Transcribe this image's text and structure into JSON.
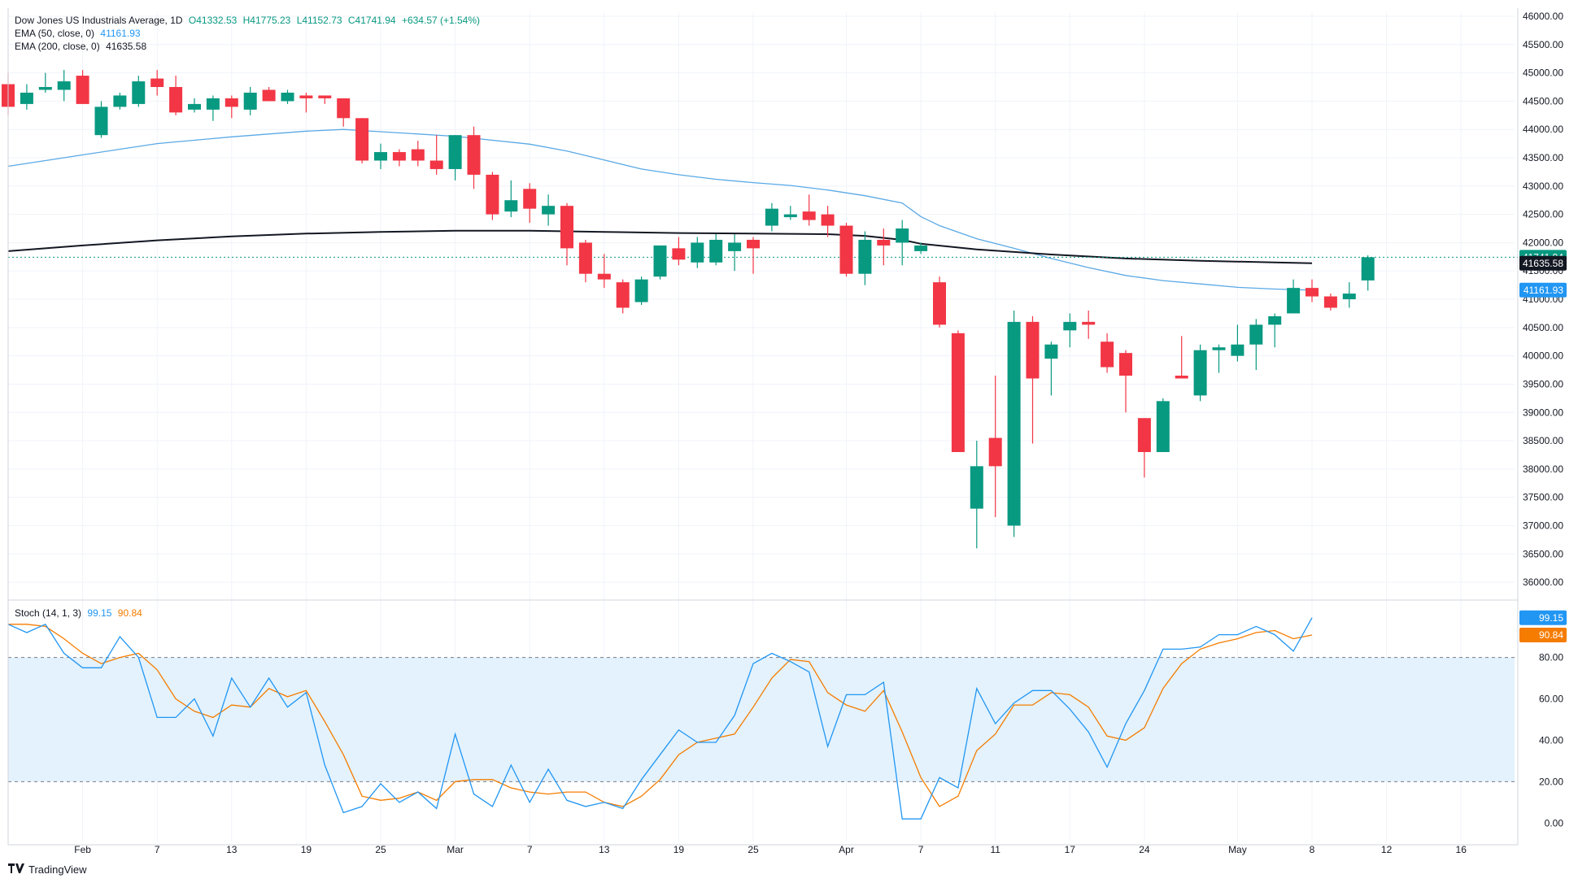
{
  "header": {
    "symbol": "Dow Jones US Industrials Average, 1D",
    "open": "O41332.53",
    "high": "H41775.23",
    "low": "L41152.73",
    "close": "C41741.94",
    "change": "+634.57 (+1.54%)",
    "ema50_label": "EMA (50, close, 0)",
    "ema50_value": "41161.93",
    "ema200_label": "EMA (200, close, 0)",
    "ema200_value": "41635.58"
  },
  "stoch_legend": {
    "label": "Stoch (14, 1, 3)",
    "k_value": "99.15",
    "d_value": "90.84"
  },
  "brand": {
    "name": "TradingView",
    "logo_icon": "tradingview-logo-icon"
  },
  "colors": {
    "up": "#089981",
    "down": "#f23645",
    "ema50": "#5aa9e6",
    "ema200": "#131722",
    "stoch_k": "#2196f3",
    "stoch_d": "#f57c00",
    "stoch_band": "#e3f2fd",
    "grid": "#f0f3fa"
  },
  "chart_data": [
    {
      "type": "candlestick",
      "title": "Dow Jones US Industrials Average, 1D",
      "ylim": [
        35800,
        46000
      ],
      "price_ticks": [
        "36000.00",
        "36500.00",
        "37000.00",
        "37500.00",
        "38000.00",
        "38500.00",
        "39000.00",
        "39500.00",
        "40000.00",
        "40500.00",
        "41000.00",
        "41500.00",
        "42000.00",
        "42500.00",
        "43000.00",
        "43500.00",
        "44000.00",
        "44500.00",
        "45000.00",
        "45500.00",
        "46000.00"
      ],
      "x_ticks": [
        {
          "label": "Feb",
          "idx": 4
        },
        {
          "label": "7",
          "idx": 8
        },
        {
          "label": "13",
          "idx": 12
        },
        {
          "label": "19",
          "idx": 16
        },
        {
          "label": "25",
          "idx": 20
        },
        {
          "label": "Mar",
          "idx": 24
        },
        {
          "label": "7",
          "idx": 28
        },
        {
          "label": "13",
          "idx": 32
        },
        {
          "label": "19",
          "idx": 36
        },
        {
          "label": "25",
          "idx": 40
        },
        {
          "label": "Apr",
          "idx": 45
        },
        {
          "label": "7",
          "idx": 49
        },
        {
          "label": "11",
          "idx": 53
        },
        {
          "label": "17",
          "idx": 57
        },
        {
          "label": "24",
          "idx": 61
        },
        {
          "label": "May",
          "idx": 66
        },
        {
          "label": "8",
          "idx": 70
        },
        {
          "label": "12",
          "idx": 74
        },
        {
          "label": "16",
          "idx": 78
        }
      ],
      "candles": [
        [
          44800,
          45000,
          44250,
          44400
        ],
        [
          44450,
          44800,
          44350,
          44650
        ],
        [
          44700,
          45000,
          44650,
          44750
        ],
        [
          44700,
          45050,
          44500,
          44850
        ],
        [
          44950,
          45050,
          44450,
          44450
        ],
        [
          43900,
          44500,
          43850,
          44400
        ],
        [
          44400,
          44650,
          44350,
          44600
        ],
        [
          44450,
          44950,
          44400,
          44850
        ],
        [
          44900,
          45050,
          44600,
          44750
        ],
        [
          44750,
          44950,
          44250,
          44300
        ],
        [
          44350,
          44550,
          44300,
          44450
        ],
        [
          44350,
          44600,
          44150,
          44550
        ],
        [
          44550,
          44600,
          44200,
          44400
        ],
        [
          44350,
          44750,
          44250,
          44650
        ],
        [
          44700,
          44750,
          44500,
          44500
        ],
        [
          44500,
          44700,
          44450,
          44650
        ],
        [
          44600,
          44650,
          44300,
          44550
        ],
        [
          44600,
          44600,
          44450,
          44550
        ],
        [
          44550,
          44550,
          44050,
          44200
        ],
        [
          44200,
          44200,
          43400,
          43450
        ],
        [
          43450,
          43750,
          43300,
          43600
        ],
        [
          43600,
          43650,
          43350,
          43450
        ],
        [
          43650,
          43800,
          43350,
          43450
        ],
        [
          43450,
          43900,
          43200,
          43300
        ],
        [
          43300,
          43900,
          43100,
          43900
        ],
        [
          43900,
          44050,
          42950,
          43200
        ],
        [
          43200,
          43250,
          42400,
          42500
        ],
        [
          42550,
          43100,
          42450,
          42750
        ],
        [
          42950,
          43050,
          42350,
          42600
        ],
        [
          42500,
          42850,
          42300,
          42650
        ],
        [
          42650,
          42700,
          41600,
          41900
        ],
        [
          42000,
          42050,
          41300,
          41450
        ],
        [
          41450,
          41800,
          41200,
          41350
        ],
        [
          41300,
          41350,
          40750,
          40850
        ],
        [
          40950,
          41400,
          40900,
          41350
        ],
        [
          41400,
          41900,
          41350,
          41950
        ],
        [
          41900,
          42100,
          41600,
          41700
        ],
        [
          41650,
          42100,
          41550,
          42000
        ],
        [
          41650,
          42150,
          41600,
          42050
        ],
        [
          41850,
          42150,
          41500,
          42000
        ],
        [
          42050,
          42100,
          41450,
          41900
        ],
        [
          42300,
          42700,
          42200,
          42600
        ],
        [
          42450,
          42650,
          42400,
          42500
        ],
        [
          42550,
          42850,
          42300,
          42400
        ],
        [
          42500,
          42650,
          42100,
          42300
        ],
        [
          42300,
          42350,
          41400,
          41450
        ],
        [
          41450,
          42200,
          41250,
          42050
        ],
        [
          42050,
          42250,
          41600,
          41950
        ],
        [
          42000,
          42400,
          41600,
          42250
        ],
        [
          41850,
          42000,
          41800,
          41950
        ],
        [
          41300,
          41400,
          40500,
          40550
        ],
        [
          40400,
          40450,
          38300,
          38300
        ],
        [
          37300,
          38500,
          36600,
          38050
        ],
        [
          38550,
          39650,
          37150,
          38050
        ],
        [
          37000,
          40800,
          36800,
          40600
        ],
        [
          40600,
          40700,
          38450,
          39600
        ],
        [
          39950,
          40250,
          39300,
          40200
        ],
        [
          40450,
          40750,
          40150,
          40600
        ],
        [
          40600,
          40800,
          40300,
          40550
        ],
        [
          40250,
          40400,
          39700,
          39800
        ],
        [
          40050,
          40100,
          39000,
          39650
        ],
        [
          38900,
          38900,
          37850,
          38300
        ],
        [
          38300,
          39250,
          38300,
          39200
        ],
        [
          39650,
          40350,
          39600,
          39600
        ],
        [
          39300,
          40200,
          39200,
          40100
        ],
        [
          40100,
          40200,
          39700,
          40150
        ],
        [
          40000,
          40550,
          39900,
          40200
        ],
        [
          40200,
          40650,
          39750,
          40550
        ],
        [
          40550,
          40750,
          40150,
          40700
        ]
      ],
      "candles_may": [
        [
          40750,
          41350,
          40850,
          41200
        ],
        [
          41200,
          41350,
          40950,
          41050
        ],
        [
          41050,
          41100,
          40800,
          40850
        ],
        [
          41000,
          41300,
          40850,
          41100
        ],
        [
          41332.53,
          41775.23,
          41152.73,
          41741.94
        ]
      ],
      "ema50": [
        [
          0,
          43350
        ],
        [
          4,
          43550
        ],
        [
          8,
          43750
        ],
        [
          12,
          43870
        ],
        [
          16,
          43970
        ],
        [
          18,
          44000
        ],
        [
          20,
          43960
        ],
        [
          24,
          43880
        ],
        [
          28,
          43740
        ],
        [
          30,
          43620
        ],
        [
          32,
          43460
        ],
        [
          34,
          43300
        ],
        [
          36,
          43200
        ],
        [
          38,
          43120
        ],
        [
          40,
          43060
        ],
        [
          42,
          43010
        ],
        [
          44,
          42930
        ],
        [
          46,
          42830
        ],
        [
          48,
          42700
        ],
        [
          49,
          42460
        ],
        [
          50,
          42300
        ],
        [
          52,
          42070
        ],
        [
          54,
          41900
        ],
        [
          56,
          41720
        ],
        [
          58,
          41560
        ],
        [
          60,
          41420
        ],
        [
          62,
          41330
        ],
        [
          64,
          41270
        ],
        [
          66,
          41210
        ],
        [
          68,
          41180
        ],
        [
          70,
          41161.93
        ]
      ],
      "ema200": [
        [
          0,
          41850
        ],
        [
          4,
          41950
        ],
        [
          8,
          42040
        ],
        [
          12,
          42110
        ],
        [
          16,
          42160
        ],
        [
          20,
          42190
        ],
        [
          24,
          42210
        ],
        [
          28,
          42210
        ],
        [
          32,
          42190
        ],
        [
          36,
          42170
        ],
        [
          40,
          42160
        ],
        [
          44,
          42150
        ],
        [
          46,
          42120
        ],
        [
          48,
          42050
        ],
        [
          49,
          41980
        ],
        [
          52,
          41880
        ],
        [
          56,
          41790
        ],
        [
          60,
          41720
        ],
        [
          64,
          41680
        ],
        [
          68,
          41650
        ],
        [
          70,
          41635.58
        ]
      ],
      "last_price_labels": {
        "close": "41741.94",
        "ema200": "41635.58",
        "ema50": "41161.93"
      }
    },
    {
      "type": "line",
      "title": "Stoch (14, 1, 3)",
      "ylim": [
        -5,
        103
      ],
      "y_ticks": [
        "0.00",
        "20.00",
        "40.00",
        "60.00",
        "80.00"
      ],
      "overbought": 80,
      "oversold": 20,
      "series": [
        {
          "name": "%K",
          "values": [
            96,
            92,
            96,
            82,
            75,
            75,
            90,
            80,
            51,
            51,
            60,
            42,
            70,
            56,
            70,
            56,
            63,
            28,
            5,
            8,
            19,
            10,
            15,
            7,
            43,
            14,
            8,
            28,
            10,
            26,
            11,
            8,
            10,
            7,
            21,
            33,
            45,
            39,
            39,
            52,
            77,
            82,
            78,
            73,
            37,
            62,
            62,
            68,
            2,
            2,
            22,
            17,
            65,
            48,
            58,
            64,
            64,
            55,
            44,
            27,
            48,
            64,
            84,
            84,
            85,
            91,
            91,
            95,
            91,
            83,
            99.15
          ]
        },
        {
          "name": "%D",
          "values": [
            96,
            96,
            95,
            89,
            82,
            77,
            80,
            82,
            74,
            60,
            54,
            51,
            57,
            56,
            65,
            61,
            64,
            49,
            33,
            13,
            11,
            12,
            15,
            11,
            20,
            21,
            21,
            17,
            15,
            14,
            15,
            15,
            10,
            8,
            13,
            21,
            33,
            39,
            41,
            43,
            56,
            70,
            79,
            78,
            63,
            57,
            54,
            64,
            44,
            22,
            8,
            13,
            35,
            43,
            57,
            57,
            63,
            62,
            56,
            42,
            40,
            46,
            65,
            77,
            84,
            87,
            89,
            92,
            93,
            89,
            90.84
          ]
        }
      ],
      "last_labels": {
        "k": "99.15",
        "d": "90.84"
      }
    }
  ]
}
